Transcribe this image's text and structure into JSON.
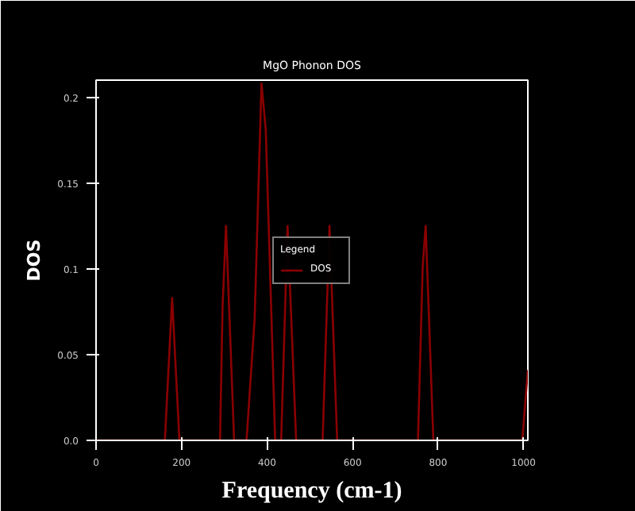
{
  "chart_data": {
    "type": "line",
    "title": "MgO Phonon DOS",
    "xlabel": "Frequency (cm-1)",
    "ylabel": "DOS",
    "legend_title": "Legend",
    "legend": "center",
    "x": [
      0,
      161,
      178,
      195,
      290,
      296,
      304,
      323,
      352,
      371,
      387,
      397,
      419,
      433,
      448,
      468,
      530,
      546,
      564,
      753,
      764,
      771,
      789,
      997,
      1010
    ],
    "series": [
      {
        "name": "DOS",
        "color": "#8b0000",
        "values": [
          0,
          0,
          0.083,
          0,
          0,
          0.078,
          0.125,
          0,
          0,
          0.071,
          0.208,
          0.181,
          0,
          0,
          0.125,
          0,
          0,
          0.125,
          0,
          0,
          0.101,
          0.125,
          0,
          0,
          0.041
        ]
      }
    ],
    "xlim": [
      0,
      1010
    ],
    "ylim": [
      0,
      0.21
    ],
    "xticks": [
      0,
      200,
      400,
      600,
      800,
      1000
    ],
    "yticks": [
      {
        "value": 0,
        "label": "0.0"
      },
      0.05,
      0.1,
      0.15,
      0.2
    ],
    "grid": false,
    "marker": "none",
    "line_style": "solid"
  }
}
